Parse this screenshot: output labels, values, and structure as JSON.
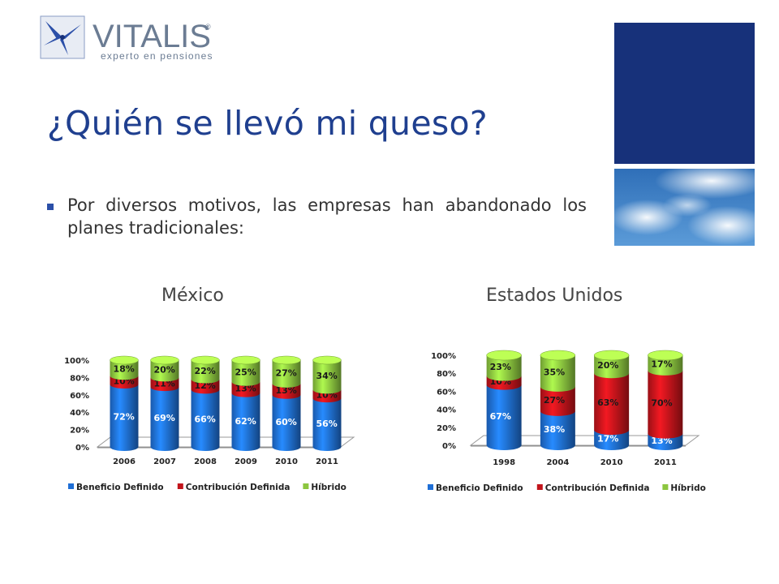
{
  "logo": {
    "brand": "VITALIS",
    "tagline": "experto en pensiones",
    "registered": "®"
  },
  "slide": {
    "title": "¿Quién se llevó mi queso?",
    "bullet": "Por diversos motivos, las empresas han abandonado los planes tradicionales:"
  },
  "colors": {
    "title": "#1f3f8f",
    "blue_block": "#17317a",
    "beneficio_definido": "#1f6fd6",
    "contribucion_definida": "#c2141b",
    "hibrido": "#8cc63f"
  },
  "chart_data": [
    {
      "type": "bar",
      "stacked": true,
      "style": "3d-cylinder",
      "title": "México",
      "categories": [
        "2006",
        "2007",
        "2008",
        "2009",
        "2010",
        "2011"
      ],
      "series": [
        {
          "name": "Beneficio Definido",
          "values": [
            72,
            69,
            66,
            62,
            60,
            56
          ],
          "labels": [
            "72%",
            "69%",
            "66%",
            "62%",
            "60%",
            "56%"
          ]
        },
        {
          "name": "Contribución Definida",
          "values": [
            10,
            11,
            12,
            13,
            13,
            10
          ],
          "labels": [
            "10%",
            "11%",
            "12%",
            "13%",
            "13%",
            "10%"
          ]
        },
        {
          "name": "Híbrido",
          "values": [
            18,
            20,
            22,
            25,
            27,
            34
          ],
          "labels": [
            "18%",
            "20%",
            "22%",
            "25%",
            "27%",
            "34%"
          ]
        }
      ],
      "yticks": [
        "0%",
        "20%",
        "40%",
        "60%",
        "80%",
        "100%"
      ],
      "ylim": [
        0,
        100
      ],
      "legend": "bottom"
    },
    {
      "type": "bar",
      "stacked": true,
      "style": "3d-cylinder",
      "title": "Estados Unidos",
      "categories": [
        "1998",
        "2004",
        "2010",
        "2011"
      ],
      "series": [
        {
          "name": "Beneficio Definido",
          "values": [
            67,
            38,
            17,
            13
          ],
          "labels": [
            "67%",
            "38%",
            "17%",
            "13%"
          ]
        },
        {
          "name": "Contribución Definida",
          "values": [
            10,
            27,
            63,
            70
          ],
          "labels": [
            "10%",
            "27%",
            "63%",
            "70%"
          ]
        },
        {
          "name": "Híbrido",
          "values": [
            23,
            35,
            20,
            17
          ],
          "labels": [
            "23%",
            "35%",
            "20%",
            "17%"
          ]
        }
      ],
      "yticks": [
        "0%",
        "20%",
        "40%",
        "60%",
        "80%",
        "100%"
      ],
      "ylim": [
        0,
        100
      ],
      "legend": "bottom"
    }
  ]
}
